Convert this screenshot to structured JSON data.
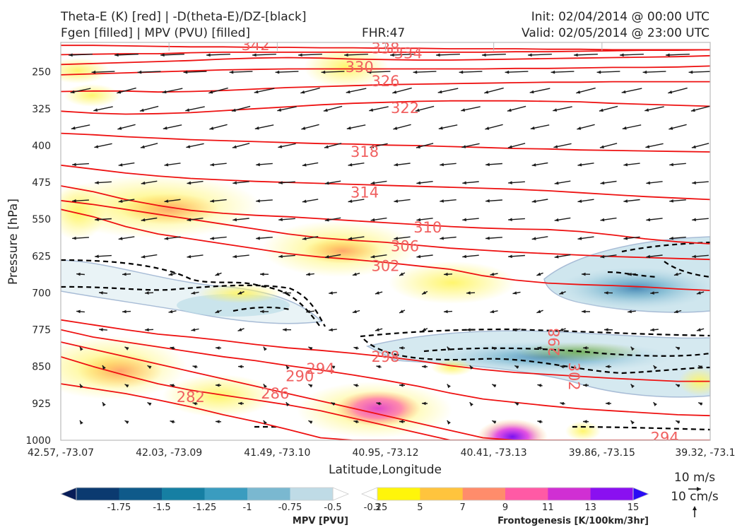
{
  "header": {
    "title_left_1": "Theta-E (K) [red] | -D(theta-E)/DZ-[black]",
    "title_left_2": "Fgen [filled] | MPV (PVU) [filled]",
    "title_mid": "FHR:47",
    "title_right_1": "Init: 02/04/2014 @ 00:00 UTC",
    "title_right_2": "Valid: 02/05/2014 @ 23:00 UTC"
  },
  "colors": {
    "theta_e": "#ee1111",
    "theta_e_label": "#f06060",
    "stability": "#000000",
    "vector": "#1a1a1a",
    "axis": "#bbbbbb"
  },
  "chart_data": {
    "type": "cross-section",
    "title": "Theta-E (K) [red] | -D(theta-E)/DZ-[black] / Fgen [filled] | MPV (PVU) [filled]",
    "xlabel": "Latitude,Longitude",
    "ylabel": "Pressure [hPa]",
    "x_ticks": [
      "42.57, -73.07",
      "42.03, -73.09",
      "41.49, -73.10",
      "40.95, -73.12",
      "40.41, -73.13",
      "39.86, -73.15",
      "39.32, -73.1"
    ],
    "y_ticks": [
      250,
      325,
      400,
      475,
      550,
      625,
      700,
      775,
      850,
      925,
      1000
    ],
    "ylim": [
      1000,
      190
    ],
    "theta_e_isentropes": [
      {
        "value": 342,
        "p": [
          196,
          196,
          197,
          198,
          199,
          199,
          200,
          200,
          201,
          201,
          202,
          202,
          203,
          203,
          203,
          204,
          204,
          205,
          205,
          205,
          205
        ]
      },
      {
        "value": 338,
        "p": [
          215,
          214,
          213,
          213,
          211,
          210,
          210,
          210,
          210,
          210,
          210,
          210,
          210,
          210,
          209,
          209,
          208,
          207,
          206,
          206,
          205
        ]
      },
      {
        "value": 334,
        "p": [
          235,
          233,
          231,
          229,
          227,
          224,
          222,
          221,
          222,
          224,
          225,
          226,
          226,
          225,
          224,
          223,
          222,
          221,
          220,
          219,
          217
        ]
      },
      {
        "value": 330,
        "p": [
          256,
          254,
          252,
          250,
          248,
          246,
          245,
          244,
          244,
          244,
          244,
          244,
          244,
          244,
          243,
          243,
          242,
          241,
          241,
          240,
          238
        ]
      },
      {
        "value": 326,
        "p": [
          290,
          289,
          289,
          291,
          290,
          288,
          285,
          282,
          280,
          278,
          276,
          275,
          274,
          273,
          272,
          271,
          271,
          270,
          270,
          270,
          270
        ]
      },
      {
        "value": 322,
        "p": [
          330,
          334,
          336,
          335,
          333,
          329,
          325,
          321,
          317,
          314,
          312,
          310,
          309,
          309,
          309,
          310,
          311,
          314,
          316,
          318,
          320
        ]
      },
      {
        "value": 318,
        "p": [
          375,
          378,
          382,
          385,
          388,
          390,
          392,
          394,
          396,
          397,
          399,
          400,
          402,
          404,
          406,
          407,
          409,
          410,
          411,
          412,
          413
        ]
      },
      {
        "value": 314,
        "p": [
          440,
          448,
          456,
          462,
          467,
          470,
          473,
          475,
          477,
          479,
          481,
          483,
          485,
          487,
          489,
          492,
          496,
          500,
          504,
          507,
          510
        ]
      },
      {
        "value": 310,
        "p": [
          482,
          494,
          510,
          522,
          532,
          538,
          542,
          545,
          549,
          553,
          557,
          561,
          565,
          568,
          570,
          571,
          575,
          582,
          590,
          596,
          600
        ]
      },
      {
        "value": 306,
        "p": [
          512,
          520,
          530,
          540,
          550,
          560,
          570,
          580,
          588,
          593,
          597,
          603,
          609,
          613,
          617,
          620,
          623,
          626,
          628,
          630,
          632
        ]
      },
      {
        "value": 302,
        "p": [
          530,
          545,
          565,
          580,
          590,
          600,
          610,
          620,
          627,
          632,
          638,
          645,
          652,
          665,
          674,
          680,
          683,
          685,
          688,
          692,
          695
        ]
      },
      {
        "value": 298,
        "p": [
          755,
          765,
          775,
          784,
          790,
          797,
          805,
          812,
          817,
          823,
          830,
          838,
          848,
          856,
          862,
          866,
          870,
          874,
          877,
          880,
          880
        ]
      },
      {
        "value": 294,
        "p": [
          775,
          790,
          800,
          810,
          820,
          830,
          838,
          848,
          857,
          867,
          878,
          890,
          904,
          916,
          923,
          930,
          936,
          940,
          944,
          948,
          950
        ]
      },
      {
        "value": 290,
        "p": [
          800,
          815,
          830,
          845,
          860,
          875,
          890,
          905,
          920,
          935,
          950,
          965,
          980,
          995,
          1000,
          1000,
          1000,
          1000,
          1000,
          1000,
          1000
        ]
      },
      {
        "value": 286,
        "p": [
          830,
          850,
          868,
          885,
          898,
          908,
          918,
          928,
          940,
          955,
          970,
          985,
          1000,
          1000,
          1000,
          1000,
          1000,
          1000,
          1000,
          1000,
          1000
        ]
      },
      {
        "value": 282,
        "p": [
          885,
          895,
          905,
          918,
          932,
          948,
          962,
          978,
          995,
          1000,
          1000,
          1000,
          1000,
          1000,
          1000,
          1000,
          1000,
          1000,
          1000,
          1000,
          1000
        ]
      }
    ],
    "theta_e_labels": [
      {
        "text": "342",
        "xi": 0.3,
        "p": 196
      },
      {
        "text": "338",
        "xi": 0.5,
        "p": 202
      },
      {
        "text": "334",
        "xi": 0.535,
        "p": 212
      },
      {
        "text": "330",
        "xi": 0.46,
        "p": 240
      },
      {
        "text": "326",
        "xi": 0.5,
        "p": 269
      },
      {
        "text": "322",
        "xi": 0.53,
        "p": 324
      },
      {
        "text": "318",
        "xi": 0.468,
        "p": 413
      },
      {
        "text": "314",
        "xi": 0.468,
        "p": 496
      },
      {
        "text": "310",
        "xi": 0.565,
        "p": 567
      },
      {
        "text": "306",
        "xi": 0.53,
        "p": 605
      },
      {
        "text": "302",
        "xi": 0.5,
        "p": 645
      },
      {
        "text": "298",
        "xi": 0.5,
        "p": 830
      },
      {
        "text": "298",
        "xi": 0.76,
        "p": 800,
        "rotate": -90
      },
      {
        "text": "302",
        "xi": 0.79,
        "p": 870,
        "rotate": 90
      },
      {
        "text": "294",
        "xi": 0.4,
        "p": 855
      },
      {
        "text": "290",
        "xi": 0.368,
        "p": 870
      },
      {
        "text": "286",
        "xi": 0.33,
        "p": 905
      },
      {
        "text": "282",
        "xi": 0.2,
        "p": 912
      },
      {
        "text": "294",
        "xi": 0.93,
        "p": 995
      }
    ],
    "frontogenesis_levels": [
      3,
      5,
      7,
      9,
      11,
      13,
      15
    ],
    "frontogenesis_label": "Frontogenesis [K/100km/3hr]",
    "mpv_levels": [
      -1.75,
      -1.5,
      -1.25,
      -1.0,
      -0.75,
      -0.5,
      -0.25
    ],
    "mpv_label": "MPV [PVU]",
    "vector_key": {
      "u": "10 m/s",
      "w": "10 cm/s"
    }
  },
  "colorbar_colors": {
    "mpv": [
      "#081d58",
      "#0b3a70",
      "#0f5a8a",
      "#167fa3",
      "#3a9cbf",
      "#7ab8d0",
      "#bfdbe6",
      "#ffffff"
    ],
    "fgen": [
      "#ffffff",
      "#fff50a",
      "#ffc43d",
      "#ff8c6b",
      "#ff5aa5",
      "#d02fd3",
      "#8a10f0",
      "#2a0cf5"
    ]
  }
}
